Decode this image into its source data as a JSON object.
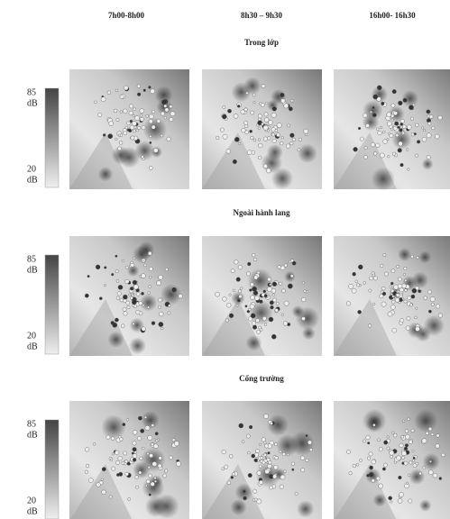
{
  "columns": [
    "7h00-8h00",
    "8h30 – 9h30",
    "16h00- 16h30"
  ],
  "rows": [
    {
      "title": "Trong lớp"
    },
    {
      "title": "Ngoài hành lang"
    },
    {
      "title": "Cổng trường"
    }
  ],
  "colorbar": {
    "max": "85",
    "min": "20",
    "unit": "dB"
  }
}
